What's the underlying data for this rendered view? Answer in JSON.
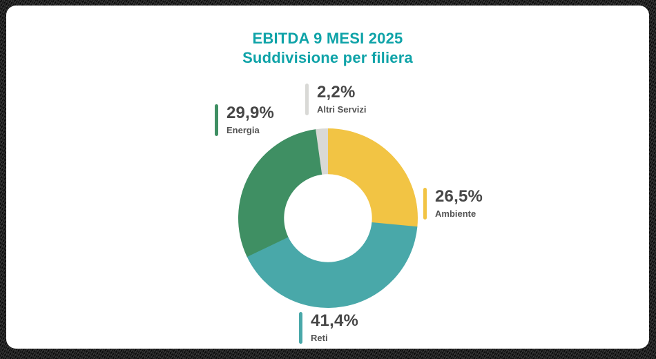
{
  "page": {
    "background_color": "#0a0a0a",
    "card_color": "#ffffff"
  },
  "title": {
    "line1": "EBITDA 9 MESI 2025",
    "line2": "Suddivisione per filiera",
    "color": "#0FA3A8"
  },
  "chart_data": {
    "type": "pie",
    "variant": "donut",
    "title": "EBITDA 9 MESI 2025 - Suddivisione per filiera",
    "unit": "%",
    "total": 100,
    "start_angle": "top (12 o'clock)",
    "direction": "clockwise",
    "inner_radius_ratio": 0.49,
    "legend_position": "callouts around chart",
    "slices": [
      {
        "label": "Ambiente",
        "value": 26.5,
        "display_value": "26,5%",
        "color": "#F2C444"
      },
      {
        "label": "Reti",
        "value": 41.4,
        "display_value": "41,4%",
        "color": "#49A8A9"
      },
      {
        "label": "Energia",
        "value": 29.9,
        "display_value": "29,9%",
        "color": "#3F8F63"
      },
      {
        "label": "Altri Servizi",
        "value": 2.2,
        "display_value": "2,2%",
        "color": "#D9D9D6"
      }
    ]
  },
  "callouts": [
    {
      "percent": "2,2%",
      "label": "Altri Servizi",
      "color": "#D9D9D6"
    },
    {
      "percent": "29,9%",
      "label": "Energia",
      "color": "#3F8F63"
    },
    {
      "percent": "26,5%",
      "label": "Ambiente",
      "color": "#F2C444"
    },
    {
      "percent": "41,4%",
      "label": "Reti",
      "color": "#49A8A9"
    }
  ],
  "text_colors": {
    "percent": "#474747",
    "label": "#525252"
  }
}
